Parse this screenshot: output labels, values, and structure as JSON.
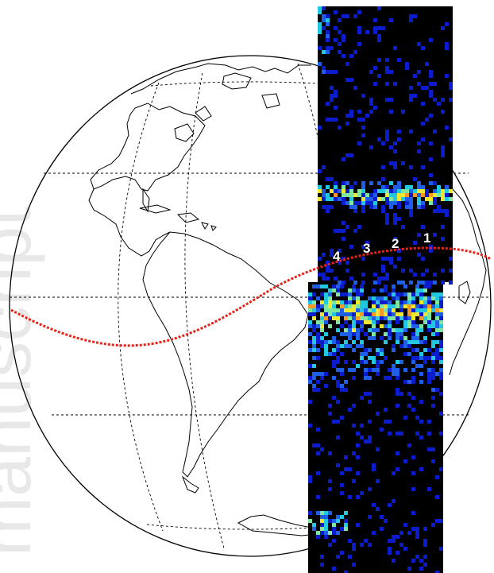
{
  "figure": {
    "watermark_text": "manuscript",
    "markers": [
      "1",
      "2",
      "3",
      "4"
    ],
    "colors": {
      "background": "#ffffff",
      "coastline": "#000000",
      "graticule": "#000000",
      "ground_track": "#e8231a",
      "scan_background": "#000000",
      "heat_low": "#0a1ccc",
      "heat_mid": "#22c8e0",
      "heat_high": "#f0e830",
      "heat_peak": "#e8231a",
      "watermark": "#e6e6e6"
    },
    "projection": "orthographic",
    "layers": [
      "graticule",
      "coastlines",
      "ground-track",
      "heatmap-swath",
      "labels"
    ]
  }
}
